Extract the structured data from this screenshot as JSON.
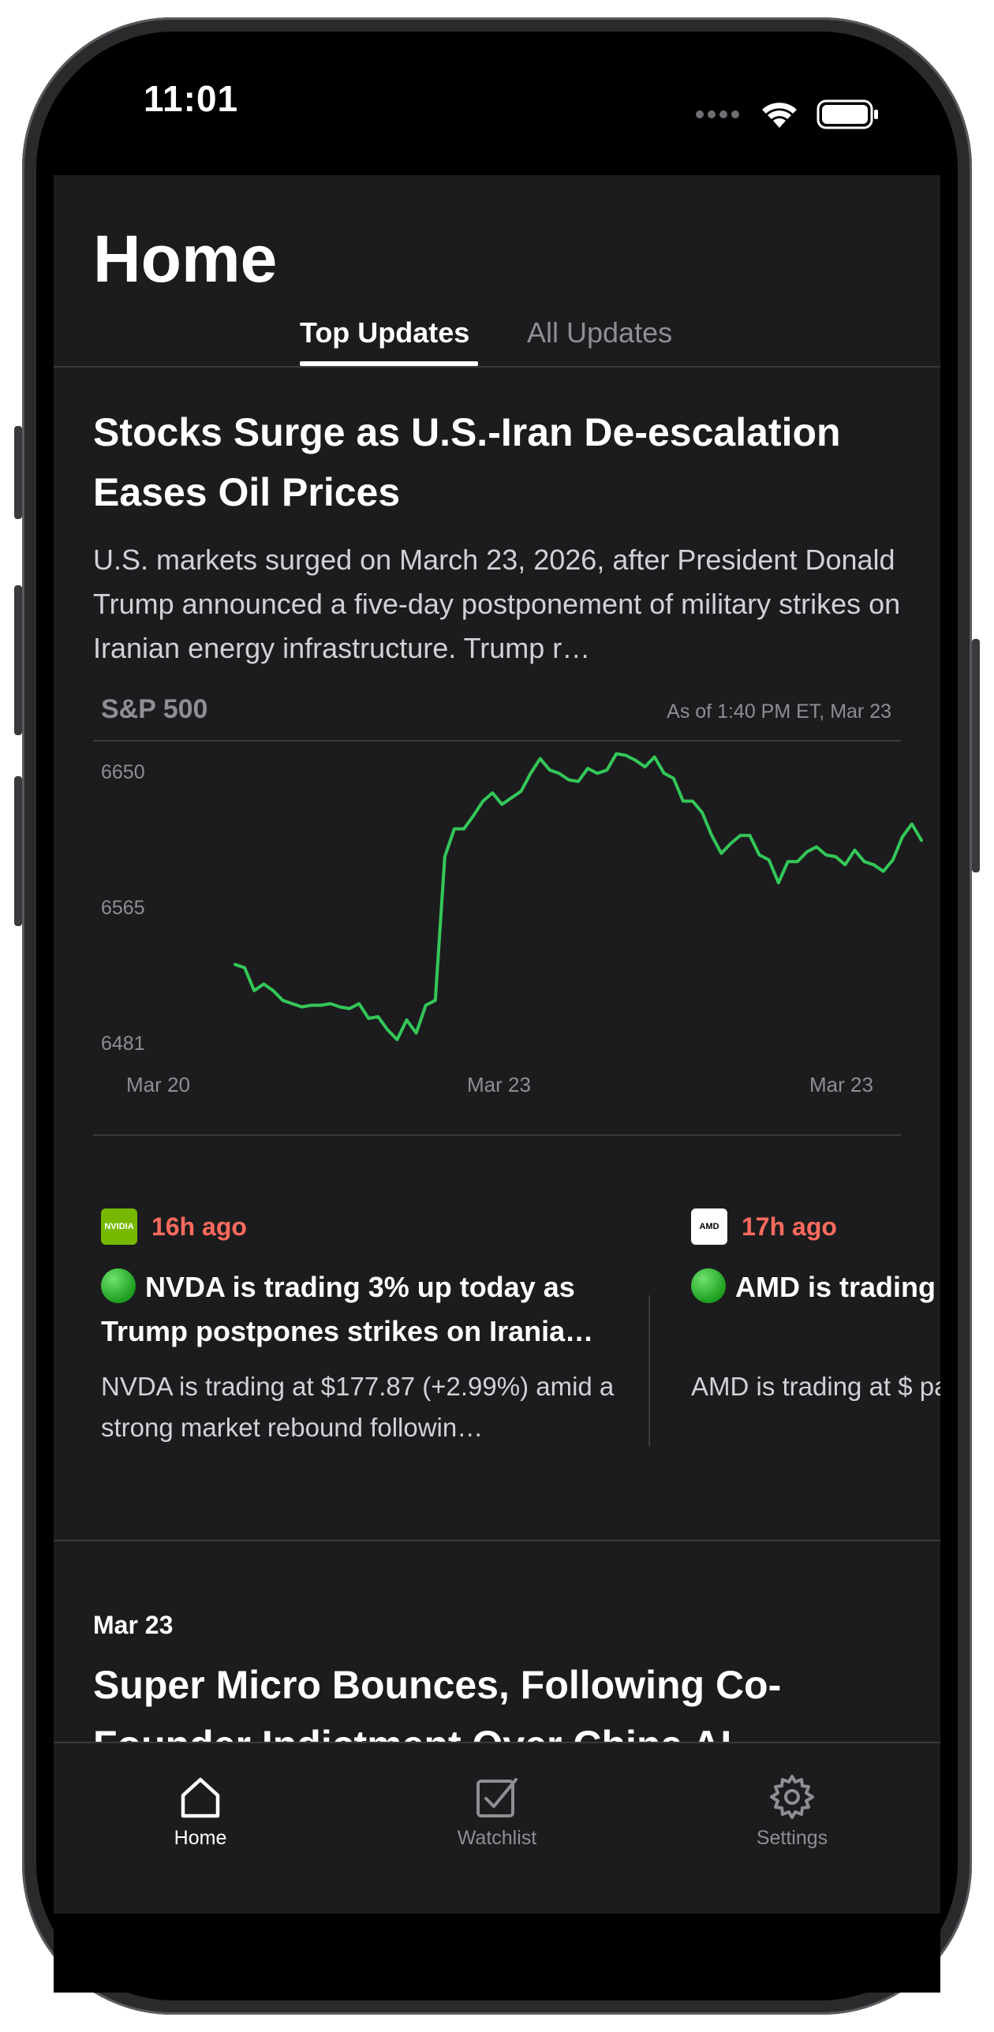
{
  "status_bar": {
    "time": "11:01"
  },
  "header": {
    "title": "Home"
  },
  "tabs": [
    {
      "label": "Top Updates",
      "active": true
    },
    {
      "label": "All Updates",
      "active": false
    }
  ],
  "top_story": {
    "title": "Stocks Surge as U.S.-Iran De-escalation Eases Oil Prices",
    "summary": "U.S. markets surged on March 23, 2026, after President Donald Trump announced a five-day postponement of military strikes on Iranian energy infrastructure. Trump r…"
  },
  "chart_card": {
    "name": "S&P 500",
    "as_of": "As of 1:40 PM ET, Mar 23"
  },
  "chart_data": {
    "type": "line",
    "title": "S&P 500",
    "y_ticks": [
      "6650",
      "6565",
      "6481"
    ],
    "x_ticks": [
      "Mar 20",
      "Mar 23",
      "Mar 23"
    ],
    "ylim": [
      6481,
      6650
    ],
    "grid": false,
    "line_color": "#34c759",
    "series": [
      {
        "values": [
          6528,
          6526,
          6512,
          6516,
          6512,
          6506,
          6504,
          6502,
          6503,
          6503,
          6504,
          6502,
          6501,
          6504,
          6495,
          6496,
          6488,
          6482,
          6494,
          6486,
          6503,
          6506,
          6594,
          6611,
          6611,
          6619,
          6628,
          6633,
          6626,
          6630,
          6634,
          6645,
          6654,
          6647,
          6645,
          6641,
          6640,
          6648,
          6645,
          6647,
          6657,
          6656,
          6653,
          6649,
          6655,
          6645,
          6642,
          6628,
          6628,
          6621,
          6607,
          6596,
          6602,
          6607,
          6607,
          6595,
          6592,
          6578,
          6591,
          6591,
          6597,
          6600,
          6595,
          6594,
          6589,
          6598,
          6591,
          6589,
          6585,
          6592,
          6606,
          6614,
          6604
        ]
      }
    ]
  },
  "ticker_cards": [
    {
      "logo": "NVIDIA",
      "time_ago": "16h ago",
      "status_icon": "green-circle",
      "title": "NVDA is trading 3% up today as Trump postpones strikes on Irania…",
      "description": "NVDA is trading at $177.87 (+2.99%) amid a strong market rebound followin…"
    },
    {
      "logo": "AMD",
      "time_ago": "17h ago",
      "status_icon": "green-circle",
      "title": "AMD is trading geopolitical tensio",
      "description": "AMD is trading at $ part of a broad mar"
    }
  ],
  "next_story": {
    "date": "Mar 23",
    "title": "Super Micro Bounces, Following Co-Founder Indictment Over China AI"
  },
  "tab_bar": [
    {
      "label": "Home",
      "icon": "house-icon",
      "active": true
    },
    {
      "label": "Watchlist",
      "icon": "checkbox-icon",
      "active": false
    },
    {
      "label": "Settings",
      "icon": "gear-icon",
      "active": false
    }
  ]
}
